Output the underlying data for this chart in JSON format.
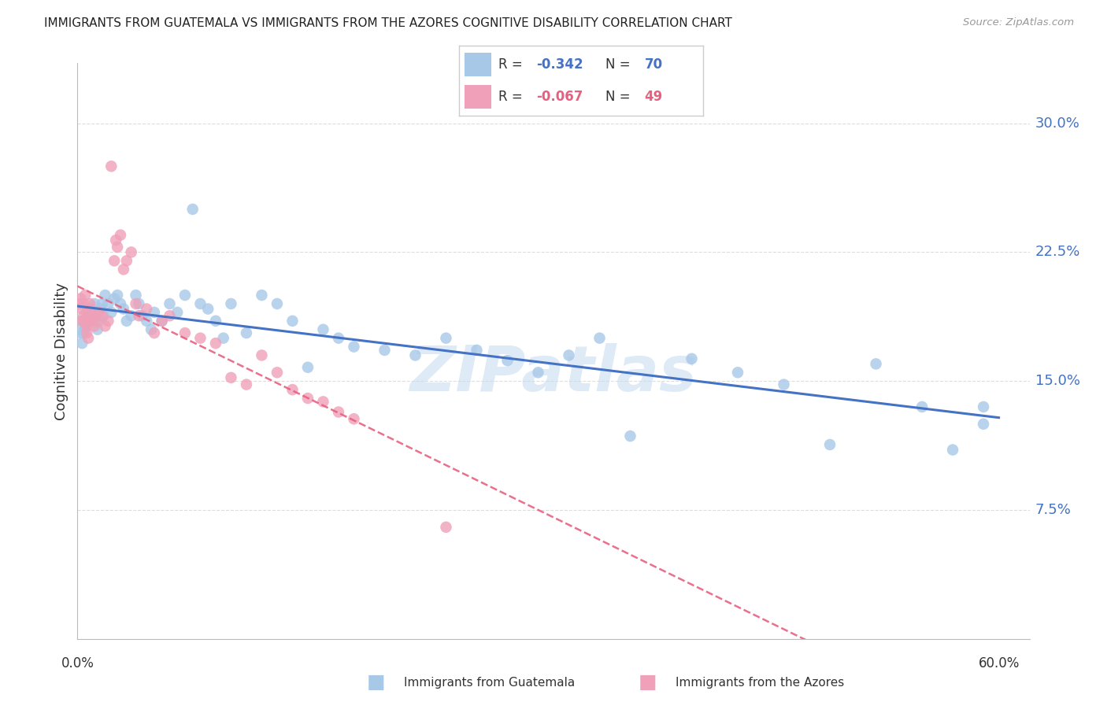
{
  "title": "IMMIGRANTS FROM GUATEMALA VS IMMIGRANTS FROM THE AZORES COGNITIVE DISABILITY CORRELATION CHART",
  "source": "Source: ZipAtlas.com",
  "ylabel": "Cognitive Disability",
  "ytick_labels": [
    "30.0%",
    "22.5%",
    "15.0%",
    "7.5%"
  ],
  "ytick_values": [
    0.3,
    0.225,
    0.15,
    0.075
  ],
  "xlim": [
    0.0,
    0.62
  ],
  "ylim": [
    0.0,
    0.335
  ],
  "legend_r1": "-0.342",
  "legend_n1": "70",
  "legend_r2": "-0.067",
  "legend_n2": "49",
  "color_blue_fill": "#A8C8E8",
  "color_pink_fill": "#F0A0B8",
  "color_blue_line": "#4472C4",
  "color_pink_line": "#E86080",
  "color_grid": "#DDDDDD",
  "color_ytick": "#4472C4",
  "watermark_color": "#C8DCF0",
  "guatemala_x": [
    0.002,
    0.003,
    0.004,
    0.005,
    0.006,
    0.007,
    0.008,
    0.009,
    0.01,
    0.011,
    0.012,
    0.013,
    0.014,
    0.015,
    0.016,
    0.017,
    0.018,
    0.02,
    0.022,
    0.024,
    0.026,
    0.028,
    0.03,
    0.032,
    0.035,
    0.038,
    0.04,
    0.042,
    0.045,
    0.048,
    0.05,
    0.055,
    0.06,
    0.065,
    0.07,
    0.075,
    0.08,
    0.085,
    0.09,
    0.095,
    0.1,
    0.11,
    0.12,
    0.13,
    0.14,
    0.15,
    0.16,
    0.17,
    0.18,
    0.2,
    0.22,
    0.24,
    0.26,
    0.28,
    0.3,
    0.32,
    0.34,
    0.36,
    0.4,
    0.43,
    0.46,
    0.49,
    0.52,
    0.55,
    0.57,
    0.59,
    0.003,
    0.004,
    0.005,
    0.59
  ],
  "guatemala_y": [
    0.178,
    0.185,
    0.182,
    0.18,
    0.19,
    0.188,
    0.185,
    0.192,
    0.186,
    0.195,
    0.188,
    0.18,
    0.185,
    0.192,
    0.195,
    0.188,
    0.2,
    0.195,
    0.19,
    0.198,
    0.2,
    0.195,
    0.192,
    0.185,
    0.188,
    0.2,
    0.195,
    0.188,
    0.185,
    0.18,
    0.19,
    0.185,
    0.195,
    0.19,
    0.2,
    0.25,
    0.195,
    0.192,
    0.185,
    0.175,
    0.195,
    0.178,
    0.2,
    0.195,
    0.185,
    0.158,
    0.18,
    0.175,
    0.17,
    0.168,
    0.165,
    0.175,
    0.168,
    0.162,
    0.155,
    0.165,
    0.175,
    0.118,
    0.163,
    0.155,
    0.148,
    0.113,
    0.16,
    0.135,
    0.11,
    0.135,
    0.172,
    0.178,
    0.183,
    0.125
  ],
  "azores_x": [
    0.001,
    0.002,
    0.003,
    0.003,
    0.004,
    0.004,
    0.005,
    0.005,
    0.006,
    0.006,
    0.007,
    0.007,
    0.008,
    0.008,
    0.009,
    0.01,
    0.011,
    0.012,
    0.014,
    0.016,
    0.018,
    0.02,
    0.022,
    0.024,
    0.025,
    0.026,
    0.028,
    0.03,
    0.032,
    0.035,
    0.038,
    0.04,
    0.045,
    0.05,
    0.055,
    0.06,
    0.07,
    0.08,
    0.09,
    0.1,
    0.11,
    0.12,
    0.13,
    0.14,
    0.15,
    0.16,
    0.17,
    0.18,
    0.24
  ],
  "azores_y": [
    0.195,
    0.198,
    0.185,
    0.192,
    0.188,
    0.195,
    0.2,
    0.185,
    0.178,
    0.182,
    0.188,
    0.175,
    0.192,
    0.195,
    0.185,
    0.188,
    0.182,
    0.185,
    0.19,
    0.188,
    0.182,
    0.185,
    0.275,
    0.22,
    0.232,
    0.228,
    0.235,
    0.215,
    0.22,
    0.225,
    0.195,
    0.188,
    0.192,
    0.178,
    0.185,
    0.188,
    0.178,
    0.175,
    0.172,
    0.152,
    0.148,
    0.165,
    0.155,
    0.145,
    0.14,
    0.138,
    0.132,
    0.128,
    0.065
  ]
}
